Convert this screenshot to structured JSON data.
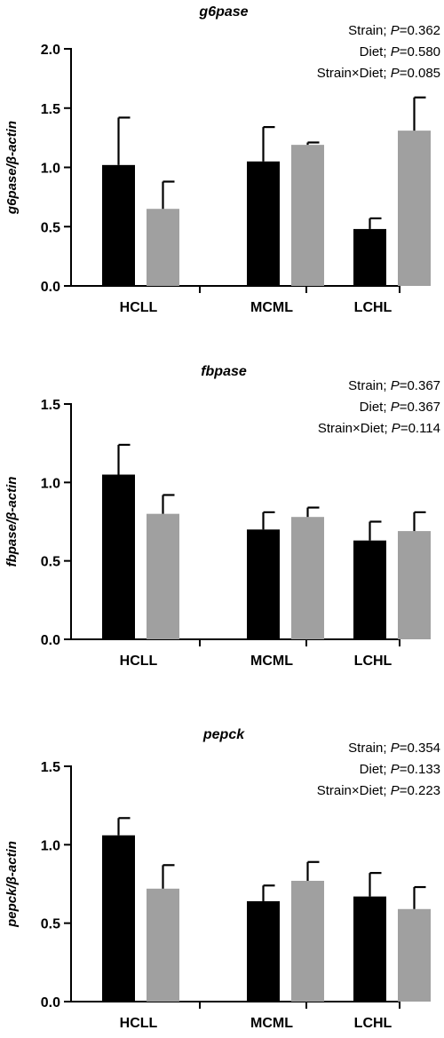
{
  "chart_data": [
    {
      "type": "bar",
      "title": "g6pase",
      "ylabel": "g6pase/β-actin",
      "categories": [
        "HCLL",
        "MCML",
        "LCHL"
      ],
      "ylim": [
        0,
        2.0
      ],
      "yticks": [
        "0.0",
        "0.5",
        "1.0",
        "1.5",
        "2.0"
      ],
      "series": [
        {
          "color": "#000000",
          "values": [
            1.02,
            1.05,
            0.48
          ],
          "errors": [
            0.4,
            0.29,
            0.09
          ]
        },
        {
          "color": "#a0a0a0",
          "values": [
            0.65,
            1.19,
            1.31
          ],
          "errors": [
            0.23,
            0.02,
            0.28
          ]
        }
      ],
      "annotations": [
        {
          "label": "Strain; ",
          "p": "P",
          "value": "=0.362"
        },
        {
          "label": "Diet; ",
          "p": "P",
          "value": "=0.580"
        },
        {
          "label": "Strain×Diet; ",
          "p": "P",
          "value": "=0.085"
        }
      ]
    },
    {
      "type": "bar",
      "title": "fbpase",
      "ylabel": "fbpase/β-actin",
      "categories": [
        "HCLL",
        "MCML",
        "LCHL"
      ],
      "ylim": [
        0,
        1.5
      ],
      "yticks": [
        "0.0",
        "0.5",
        "1.0",
        "1.5"
      ],
      "series": [
        {
          "color": "#000000",
          "values": [
            1.05,
            0.7,
            0.63
          ],
          "errors": [
            0.19,
            0.11,
            0.12
          ]
        },
        {
          "color": "#a0a0a0",
          "values": [
            0.8,
            0.78,
            0.69
          ],
          "errors": [
            0.12,
            0.06,
            0.12
          ]
        }
      ],
      "annotations": [
        {
          "label": "Strain; ",
          "p": "P",
          "value": "=0.367"
        },
        {
          "label": "Diet; ",
          "p": "P",
          "value": "=0.367"
        },
        {
          "label": "Strain×Diet; ",
          "p": "P",
          "value": "=0.114"
        }
      ]
    },
    {
      "type": "bar",
      "title": "pepck",
      "ylabel": "pepck/β-actin",
      "categories": [
        "HCLL",
        "MCML",
        "LCHL"
      ],
      "ylim": [
        0,
        1.5
      ],
      "yticks": [
        "0.0",
        "0.5",
        "1.0",
        "1.5"
      ],
      "series": [
        {
          "color": "#000000",
          "values": [
            1.06,
            0.64,
            0.67
          ],
          "errors": [
            0.11,
            0.1,
            0.15
          ]
        },
        {
          "color": "#a0a0a0",
          "values": [
            0.72,
            0.77,
            0.59
          ],
          "errors": [
            0.15,
            0.12,
            0.14
          ]
        }
      ],
      "annotations": [
        {
          "label": "Strain; ",
          "p": "P",
          "value": "=0.354"
        },
        {
          "label": "Diet; ",
          "p": "P",
          "value": "=0.133"
        },
        {
          "label": "Strain×Diet; ",
          "p": "P",
          "value": "=0.223"
        }
      ]
    }
  ]
}
